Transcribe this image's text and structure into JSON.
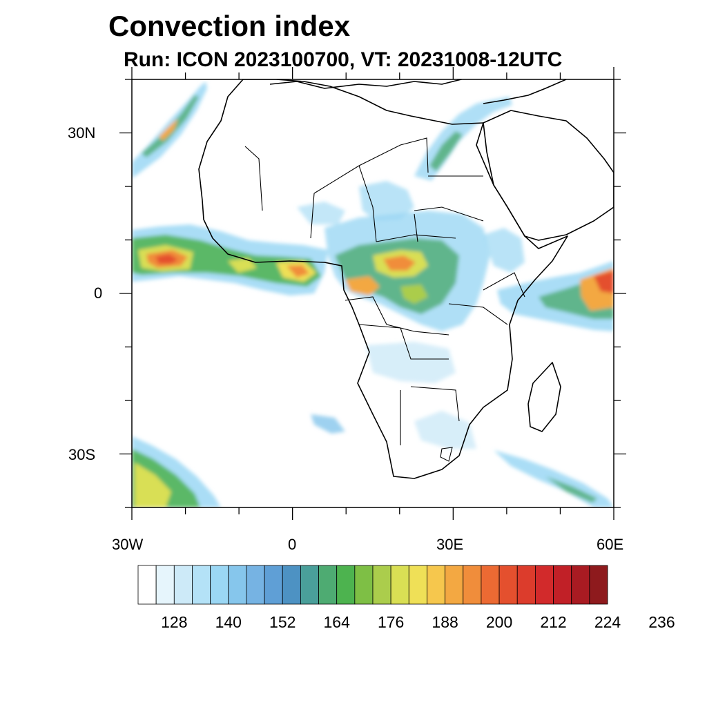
{
  "title": "Convection index",
  "subtitle": "Run: ICON 2023100700,  VT: 20231008-12UTC",
  "map": {
    "region": "Africa",
    "lon_range": [
      -30,
      60
    ],
    "lat_range": [
      -40,
      40
    ],
    "lat_ticks": [
      {
        "value": 30,
        "label": "30N"
      },
      {
        "value": 0,
        "label": "0"
      },
      {
        "value": -30,
        "label": "30S"
      }
    ],
    "lon_ticks": [
      {
        "value": -30,
        "label": "30W"
      },
      {
        "value": 0,
        "label": "0"
      },
      {
        "value": 30,
        "label": "30E"
      },
      {
        "value": 60,
        "label": "60E"
      }
    ]
  },
  "colorbar": {
    "levels": [
      "128",
      "140",
      "152",
      "164",
      "176",
      "188",
      "200",
      "212",
      "224",
      "236"
    ],
    "colors": [
      "#ffffff",
      "#e6f5fc",
      "#cdeaf8",
      "#b4e2f7",
      "#9bd7f4",
      "#86c6ec",
      "#76b3e3",
      "#5f9fd6",
      "#4d92c3",
      "#4a9f9a",
      "#4eab72",
      "#4db34f",
      "#7ebf45",
      "#abcd4c",
      "#d9df54",
      "#efe057",
      "#f6c74d",
      "#f3a842",
      "#f08d3b",
      "#ec6a33",
      "#e4502e",
      "#dc3c2c",
      "#d22a2b",
      "#c12027",
      "#a91b22",
      "#8e1a1d"
    ]
  }
}
